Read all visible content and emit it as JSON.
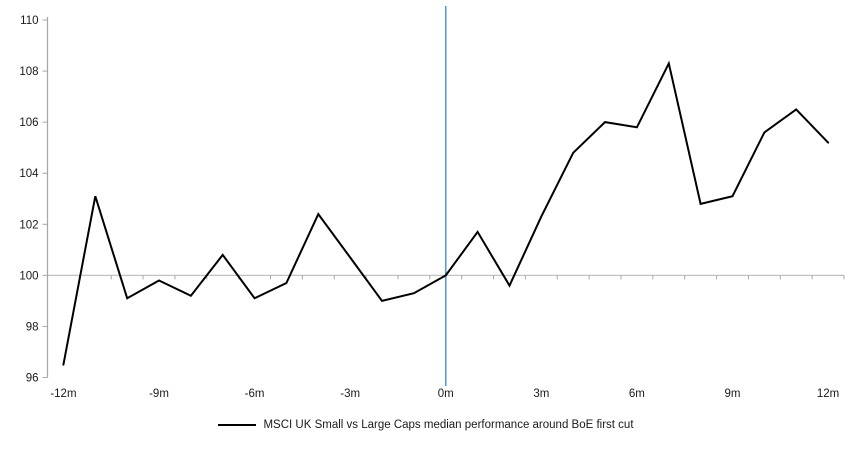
{
  "chart_data": {
    "type": "line",
    "title": "",
    "x_months": [
      -12,
      -11,
      -10,
      -9,
      -8,
      -7,
      -6,
      -5,
      -4,
      -3,
      -2,
      -1,
      0,
      1,
      2,
      3,
      4,
      5,
      6,
      7,
      8,
      9,
      10,
      11,
      12
    ],
    "series": [
      {
        "name": "MSCI UK Small vs Large Caps median performance around BoE first cut",
        "color": "#000000",
        "values": [
          96.5,
          103.1,
          99.1,
          99.8,
          99.2,
          100.8,
          99.1,
          99.7,
          102.4,
          100.7,
          99.0,
          99.3,
          100.0,
          101.7,
          99.6,
          102.3,
          104.8,
          106.0,
          105.8,
          108.3,
          102.8,
          103.1,
          105.6,
          106.5,
          105.2
        ]
      }
    ],
    "x_axis_labels": [
      {
        "label": "-12m",
        "month": -12
      },
      {
        "label": "-9m",
        "month": -9
      },
      {
        "label": "-6m",
        "month": -6
      },
      {
        "label": "-3m",
        "month": -3
      },
      {
        "label": "0m",
        "month": 0
      },
      {
        "label": "3m",
        "month": 3
      },
      {
        "label": "6m",
        "month": 6
      },
      {
        "label": "9m",
        "month": 9
      },
      {
        "label": "12m",
        "month": 12
      }
    ],
    "y_ticks": [
      96,
      98,
      100,
      102,
      104,
      106,
      108,
      110
    ],
    "ylim": [
      96,
      110
    ],
    "baseline_value": 100,
    "event_line_month": 0,
    "grid": "baseline-only",
    "legend_position": "bottom",
    "colors": {
      "series_line": "#000000",
      "event_line": "#5B9BD5",
      "axis_line": "#A6A6A6",
      "baseline_line": "#C2C2C2",
      "tick_text": "#1a1a1a"
    }
  },
  "legend": {
    "label": "MSCI UK Small vs Large Caps median performance around BoE first cut"
  }
}
